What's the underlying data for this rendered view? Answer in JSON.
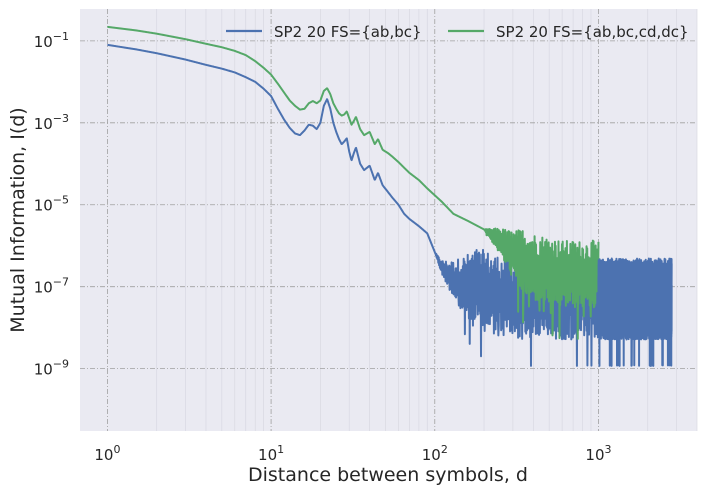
{
  "chart_data": {
    "type": "line",
    "title": "",
    "xlabel": "Distance between symbols, d",
    "ylabel": "Mutual Information, I(d)",
    "xscale": "log",
    "yscale": "log",
    "xlim": [
      0.68,
      4000
    ],
    "ylim": [
      3e-11,
      0.6
    ],
    "grid": true,
    "legend_position": "top-right",
    "x_ticks": [
      {
        "value": 1,
        "base": "10",
        "exp": "0"
      },
      {
        "value": 10,
        "base": "10",
        "exp": "1"
      },
      {
        "value": 100,
        "base": "10",
        "exp": "2"
      },
      {
        "value": 1000,
        "base": "10",
        "exp": "3"
      }
    ],
    "y_ticks": [
      {
        "value": 0.1,
        "base": "10",
        "exp": "−1"
      },
      {
        "value": 0.001,
        "base": "10",
        "exp": "−3"
      },
      {
        "value": 1e-05,
        "base": "10",
        "exp": "−5"
      },
      {
        "value": 1e-07,
        "base": "10",
        "exp": "−7"
      },
      {
        "value": 1e-09,
        "base": "10",
        "exp": "−9"
      }
    ],
    "series": [
      {
        "name": "SP2 20 FS={ab,bc}",
        "color": "#4c72b0",
        "x": [
          1,
          1.5,
          2,
          3,
          4,
          5,
          6,
          7,
          8,
          9,
          10,
          11,
          12,
          13,
          14,
          15,
          16,
          17,
          18,
          19,
          20,
          21,
          22,
          23,
          24,
          25,
          26,
          27,
          28,
          29,
          30,
          31,
          32,
          33,
          35,
          37,
          40,
          43,
          45,
          48,
          52,
          55,
          60,
          65,
          70,
          80,
          90,
          100,
          110,
          130,
          160,
          200,
          250,
          300,
          400,
          500,
          600,
          700,
          800,
          900,
          1000,
          1200,
          1400,
          1600,
          2000,
          2500,
          2800
        ],
        "y": [
          0.08,
          0.062,
          0.05,
          0.035,
          0.026,
          0.021,
          0.017,
          0.013,
          0.01,
          0.0068,
          0.0045,
          0.0022,
          0.0012,
          0.00075,
          0.00055,
          0.0005,
          0.00065,
          0.0009,
          0.00085,
          0.0007,
          0.001,
          0.0026,
          0.0038,
          0.0022,
          0.001,
          0.0006,
          0.0004,
          0.0003,
          0.00035,
          0.00042,
          0.0002,
          0.00012,
          0.00018,
          0.00025,
          0.0001,
          7e-05,
          9e-05,
          4e-05,
          6e-05,
          3e-05,
          2e-05,
          1.5e-05,
          1e-05,
          6e-06,
          4.5e-06,
          3e-06,
          2e-06,
          7e-07,
          3e-07,
          1.5e-07,
          1e-07,
          8e-08,
          6e-08,
          5e-08,
          5e-08,
          5e-08,
          5e-08,
          5e-08,
          5e-08,
          5e-08,
          5e-08,
          5e-08,
          5e-08,
          5e-08,
          5e-08,
          5e-08,
          5e-08
        ]
      },
      {
        "name": "SP2 20 FS={ab,bc,cd,dc}",
        "color": "#55a868",
        "x": [
          1,
          1.5,
          2,
          3,
          4,
          5,
          6,
          7,
          8,
          9,
          10,
          11,
          12,
          13,
          14,
          15,
          16,
          17,
          18,
          19,
          20,
          21,
          22,
          23,
          24,
          25,
          26,
          27,
          28,
          29,
          30,
          31,
          32,
          33,
          35,
          37,
          40,
          43,
          45,
          48,
          52,
          55,
          60,
          65,
          70,
          80,
          90,
          100,
          110,
          130,
          160,
          200,
          250,
          300,
          400,
          500,
          600,
          700,
          800,
          900,
          1000
        ],
        "y": [
          0.22,
          0.18,
          0.15,
          0.11,
          0.085,
          0.07,
          0.057,
          0.045,
          0.032,
          0.022,
          0.015,
          0.009,
          0.0055,
          0.0035,
          0.0026,
          0.0021,
          0.0022,
          0.003,
          0.0034,
          0.003,
          0.0035,
          0.006,
          0.007,
          0.005,
          0.003,
          0.0022,
          0.0017,
          0.0015,
          0.0016,
          0.0019,
          0.0013,
          0.0009,
          0.0011,
          0.0014,
          0.0007,
          0.0005,
          0.0006,
          0.0003,
          0.0004,
          0.00022,
          0.00018,
          0.00015,
          0.00011,
          8e-05,
          6e-05,
          4e-05,
          2.5e-05,
          1.7e-05,
          1.2e-05,
          6e-06,
          4e-06,
          2.5e-06,
          1.3e-06,
          6e-07,
          3e-07,
          2.5e-07,
          2e-07,
          2e-07,
          2e-07,
          2e-07,
          2e-07
        ]
      }
    ]
  }
}
